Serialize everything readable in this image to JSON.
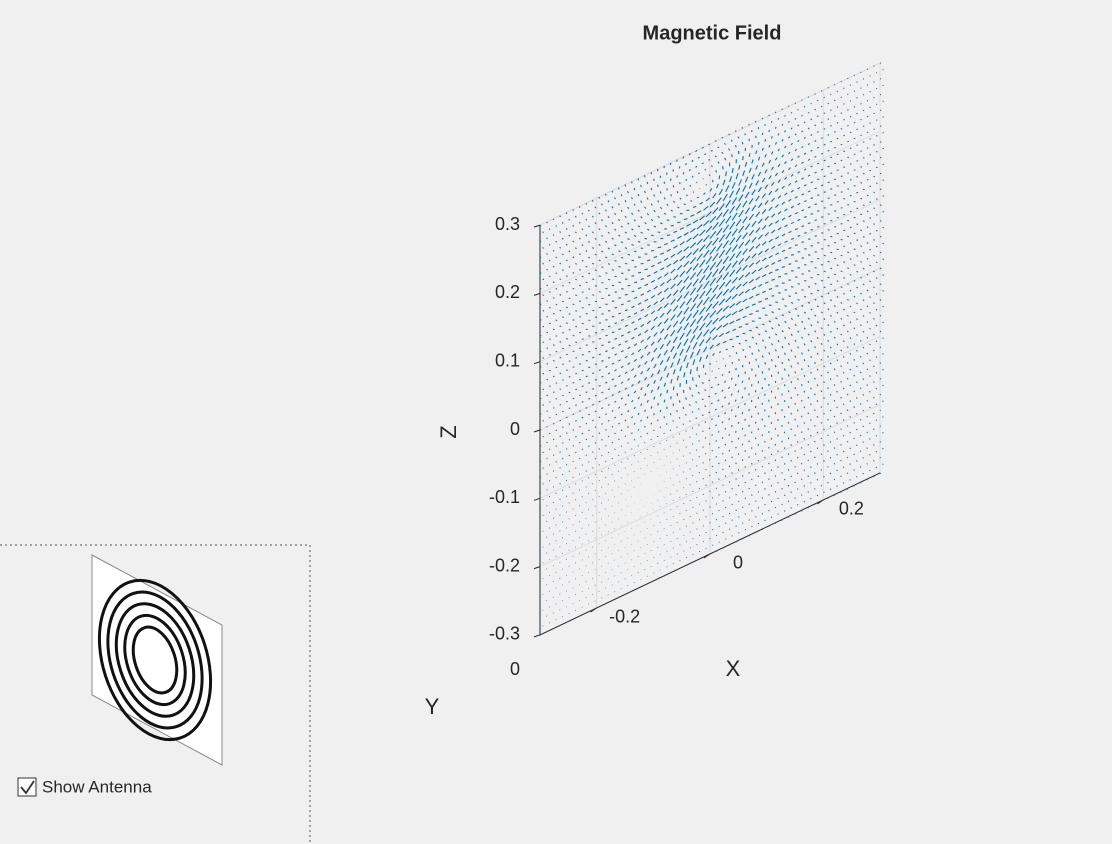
{
  "figure": {
    "title": "Magnetic Field",
    "xlabel": "X",
    "ylabel": "Y",
    "zlabel": "Z",
    "xticks": [
      -0.2,
      0,
      0.2
    ],
    "yticks": [
      0
    ],
    "zticks": [
      0.3,
      0.2,
      0.1,
      0,
      -0.1,
      -0.2,
      -0.3
    ],
    "xlim": [
      -0.3,
      0.3
    ],
    "zlim": [
      -0.3,
      0.3
    ],
    "color": "#0072bd"
  },
  "panel": {
    "checkbox_label": "Show Antenna",
    "checked": true
  }
}
